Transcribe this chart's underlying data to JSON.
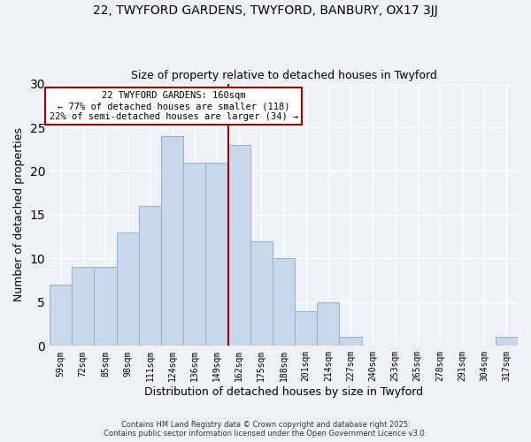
{
  "title1": "22, TWYFORD GARDENS, TWYFORD, BANBURY, OX17 3JJ",
  "title2": "Size of property relative to detached houses in Twyford",
  "xlabel": "Distribution of detached houses by size in Twyford",
  "ylabel": "Number of detached properties",
  "bar_labels": [
    "59sqm",
    "72sqm",
    "85sqm",
    "98sqm",
    "111sqm",
    "124sqm",
    "136sqm",
    "149sqm",
    "162sqm",
    "175sqm",
    "188sqm",
    "201sqm",
    "214sqm",
    "227sqm",
    "240sqm",
    "253sqm",
    "265sqm",
    "278sqm",
    "291sqm",
    "304sqm",
    "317sqm"
  ],
  "bar_values": [
    7,
    9,
    9,
    13,
    16,
    24,
    21,
    21,
    23,
    12,
    10,
    4,
    5,
    1,
    0,
    0,
    0,
    0,
    0,
    0,
    1
  ],
  "bar_color": "#c8d8ea",
  "bar_edge_color": "#9ab4cc",
  "vline_x_index": 8,
  "vline_color": "#aa0000",
  "annotation_title": "22 TWYFORD GARDENS: 160sqm",
  "annotation_line2": "← 77% of detached houses are smaller (118)",
  "annotation_line3": "22% of semi-detached houses are larger (34) →",
  "annotation_box_color": "#ffffff",
  "annotation_box_edge": "#aa0000",
  "ylim": [
    0,
    30
  ],
  "yticks": [
    0,
    5,
    10,
    15,
    20,
    25,
    30
  ],
  "footer1": "Contains HM Land Registry data © Crown copyright and database right 2025.",
  "footer2": "Contains public sector information licensed under the Open Government Licence v3.0.",
  "bg_color": "#eef2f7",
  "plot_bg_color": "#eef2f7",
  "grid_color": "#ffffff"
}
